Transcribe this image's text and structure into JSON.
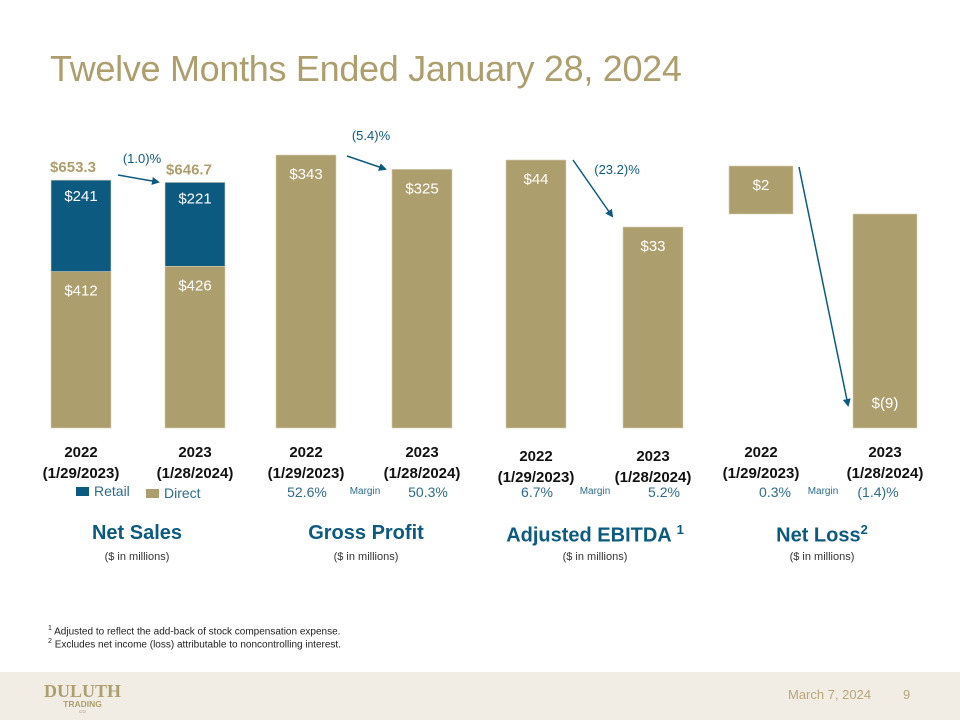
{
  "title": "Twelve Months Ended January 28, 2024",
  "colors": {
    "direct": "#ad9e6e",
    "retail": "#0d5a80",
    "arrow": "#0d5a80",
    "title": "#ad9e6e",
    "footer_bg": "#f2ede4"
  },
  "chart_data": [
    {
      "type": "bar",
      "stacked": true,
      "title": "Net Sales",
      "subtitle": "($ in millions)",
      "categories": [
        "2022 (1/29/2023)",
        "2023 (1/28/2024)"
      ],
      "series": [
        {
          "name": "Direct",
          "values": [
            412,
            426
          ],
          "labels": [
            "$412",
            "$426"
          ]
        },
        {
          "name": "Retail",
          "values": [
            241,
            221
          ],
          "labels": [
            "$241",
            "$221"
          ]
        }
      ],
      "totals": [
        653.3,
        646.7
      ],
      "total_labels": [
        "$653.3",
        "$646.7"
      ],
      "change_label": "(1.0)%",
      "legend": [
        "Retail",
        "Direct"
      ]
    },
    {
      "type": "bar",
      "title": "Gross Profit",
      "subtitle": "($ in millions)",
      "categories": [
        "2022 (1/29/2023)",
        "2023 (1/28/2024)"
      ],
      "values": [
        343,
        325
      ],
      "labels": [
        "$343",
        "$325"
      ],
      "change_label": "(5.4)%",
      "margins": [
        "52.6%",
        "50.3%"
      ],
      "margin_label": "Margin"
    },
    {
      "type": "bar",
      "title": "Adjusted EBITDA",
      "title_sup": "1",
      "subtitle": "($ in millions)",
      "categories": [
        "2022 (1/29/2023)",
        "2023 (1/28/2024)"
      ],
      "values": [
        44,
        33
      ],
      "labels": [
        "$44",
        "$33"
      ],
      "change_label": "(23.2)%",
      "margins": [
        "6.7%",
        "5.2%"
      ],
      "margin_label": "Margin"
    },
    {
      "type": "bar",
      "title": "Net Loss",
      "title_sup": "2",
      "subtitle": "($ in millions)",
      "categories": [
        "2022 (1/29/2023)",
        "2023 (1/28/2024)"
      ],
      "values": [
        2,
        -9
      ],
      "labels": [
        "$2",
        "$(9)"
      ],
      "margins": [
        "0.3%",
        "(1.4)%"
      ],
      "margin_label": "Margin"
    }
  ],
  "categories_display": [
    {
      "year": "2022",
      "date": "(1/29/2023)"
    },
    {
      "year": "2023",
      "date": "(1/28/2024)"
    }
  ],
  "footnotes": [
    {
      "sup": "1",
      "text": "Adjusted to reflect the add-back of stock compensation expense."
    },
    {
      "sup": "2",
      "text": "Excludes net income (loss) attributable to noncontrolling interest."
    }
  ],
  "footer": {
    "logo": "DULUTH TRADING CO",
    "logo_line1": "DULUTH",
    "logo_line2": "TRADING",
    "logo_line3": "CO",
    "date": "March 7, 2024",
    "page": "9"
  }
}
